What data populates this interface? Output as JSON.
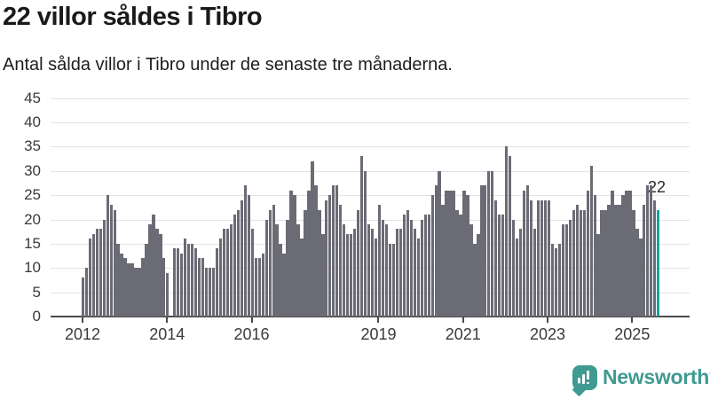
{
  "header": {
    "title": "22 villor såldes i Tibro",
    "subtitle": "Antal sålda villor i Tibro under de senaste tre månaderna."
  },
  "annotation": {
    "last_value_label": "22"
  },
  "branding": {
    "name": "Newsworthy",
    "logo_icon": "newsworthy-bubble-chart-icon",
    "brand_color": "#3f9a92"
  },
  "chart_data": {
    "type": "bar",
    "title": "22 villor såldes i Tibro",
    "subtitle": "Antal sålda villor i Tibro under de senaste tre månaderna.",
    "x_tick_labels": [
      "2012",
      "2014",
      "2016",
      "2019",
      "2021",
      "2023",
      "2025"
    ],
    "y_ticks": [
      0,
      5,
      10,
      15,
      20,
      25,
      30,
      35,
      40,
      45
    ],
    "ylim": [
      0,
      45
    ],
    "grid": "horizontal",
    "legend": "none",
    "x_unit": "month",
    "bar_color": "#6b6b75",
    "highlight_color": "#16a0a3",
    "highlight_last_bar": true,
    "last_value": 22,
    "values": [
      8,
      10,
      16,
      17,
      18,
      18,
      20,
      25,
      23,
      22,
      15,
      13,
      12,
      11,
      11,
      10,
      10,
      12,
      15,
      19,
      21,
      18,
      17,
      12,
      9,
      0,
      14,
      14,
      13,
      16,
      15,
      15,
      14,
      12,
      12,
      10,
      10,
      10,
      14,
      16,
      18,
      18,
      19,
      21,
      22,
      24,
      27,
      25,
      18,
      12,
      12,
      13,
      20,
      22,
      23,
      19,
      15,
      13,
      20,
      26,
      25,
      19,
      16,
      22,
      26,
      32,
      27,
      22,
      17,
      24,
      25,
      27,
      27,
      23,
      19,
      17,
      17,
      18,
      22,
      33,
      30,
      19,
      18,
      16,
      23,
      20,
      19,
      15,
      15,
      18,
      18,
      21,
      22,
      20,
      18,
      16,
      20,
      21,
      21,
      25,
      27,
      30,
      23,
      26,
      26,
      26,
      22,
      21,
      26,
      25,
      19,
      15,
      17,
      27,
      27,
      30,
      30,
      24,
      21,
      21,
      35,
      33,
      20,
      16,
      18,
      26,
      27,
      24,
      18,
      24,
      24,
      24,
      24,
      15,
      14,
      15,
      19,
      19,
      20,
      22,
      23,
      22,
      22,
      26,
      31,
      25,
      17,
      22,
      22,
      23,
      26,
      23,
      23,
      25,
      26,
      26,
      22,
      18,
      16,
      23,
      27,
      27,
      24,
      22
    ]
  }
}
